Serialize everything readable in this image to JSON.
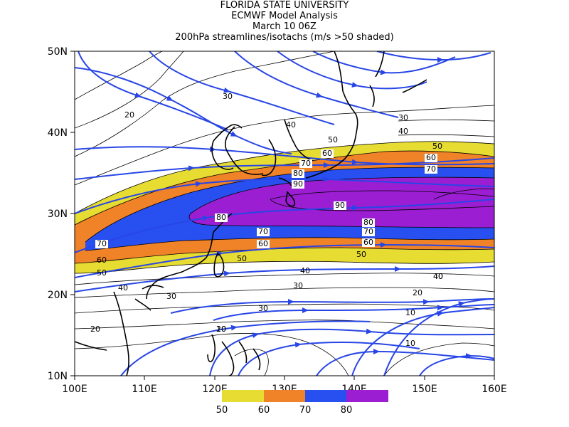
{
  "title": {
    "line1": "FLORIDA STATE UNIVERSITY",
    "line2": "ECMWF Model Analysis",
    "line3": "March 10 06Z",
    "line4": "200hPa streamlines/isotachs (m/s >50 shaded)"
  },
  "axes": {
    "x_ticks": [
      "100E",
      "110E",
      "120E",
      "130E",
      "140E",
      "150E",
      "160E"
    ],
    "y_ticks": [
      "50N",
      "40N",
      "30N",
      "20N",
      "10N"
    ]
  },
  "colors": {
    "shade_50": "#e6dc32",
    "shade_60": "#f08228",
    "shade_70": "#2850f0",
    "shade_80": "#9b1ed2",
    "streamline": "#2846e6",
    "coast": "#000000",
    "contour": "#000000"
  },
  "legend": {
    "labels": [
      "50",
      "60",
      "70",
      "80"
    ]
  },
  "contour_labels": [
    {
      "text": "30"
    },
    {
      "text": "20"
    },
    {
      "text": "40"
    },
    {
      "text": "50"
    },
    {
      "text": "60"
    },
    {
      "text": "70"
    },
    {
      "text": "80"
    },
    {
      "text": "90"
    },
    {
      "text": "30"
    },
    {
      "text": "40"
    },
    {
      "text": "50"
    },
    {
      "text": "60"
    },
    {
      "text": "70"
    },
    {
      "text": "80"
    },
    {
      "text": "70"
    },
    {
      "text": "60"
    },
    {
      "text": "50"
    },
    {
      "text": "40"
    },
    {
      "text": "30"
    },
    {
      "text": "20"
    },
    {
      "text": "10"
    },
    {
      "text": "70"
    },
    {
      "text": "60"
    },
    {
      "text": "50"
    },
    {
      "text": "40"
    },
    {
      "text": "30"
    },
    {
      "text": "20"
    },
    {
      "text": "10"
    },
    {
      "text": "40"
    },
    {
      "text": "30"
    },
    {
      "text": "20"
    },
    {
      "text": "10"
    },
    {
      "text": "90"
    },
    {
      "text": "80"
    },
    {
      "text": "70"
    },
    {
      "text": "60"
    },
    {
      "text": "50"
    },
    {
      "text": "40"
    }
  ]
}
